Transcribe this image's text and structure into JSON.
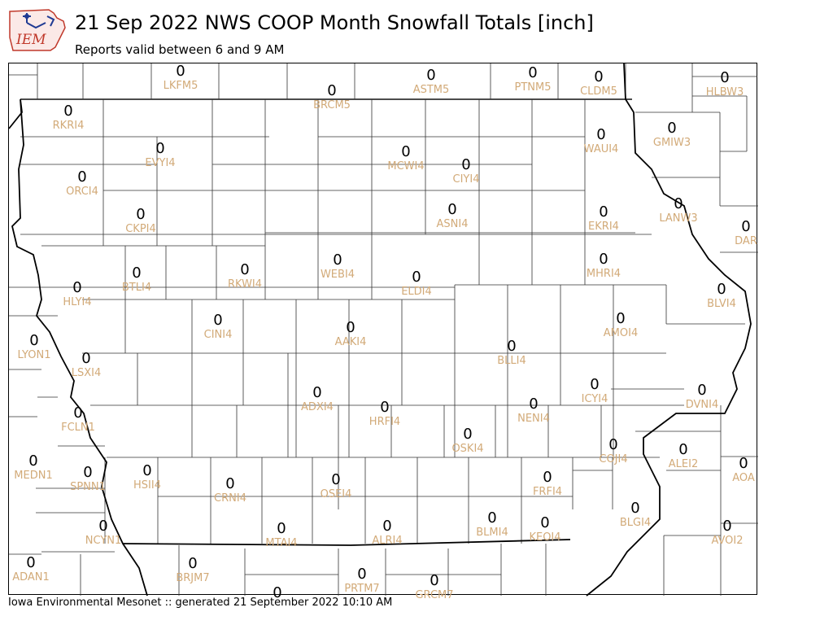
{
  "header": {
    "title": "21 Sep 2022 NWS COOP Month Snowfall Totals [inch]",
    "subtitle": "Reports valid between 6 and 9 AM",
    "logo_text": "IEM"
  },
  "footer": {
    "text": "Iowa Environmental Mesonet :: generated 21 September 2022 10:10 AM"
  },
  "colors": {
    "station_id": "#d2aa78",
    "value": "#000000",
    "logo_red": "#c0392b",
    "logo_blue": "#1f3a93"
  },
  "map": {
    "stations": [
      {
        "id": "LKFM5",
        "value": "0"
      },
      {
        "id": "ASTM5",
        "value": "0"
      },
      {
        "id": "PTNM5",
        "value": "0"
      },
      {
        "id": "CLDM5",
        "value": "0"
      },
      {
        "id": "HLBW3",
        "value": "0"
      },
      {
        "id": "BRCM5",
        "value": "0"
      },
      {
        "id": "RKRI4",
        "value": "0"
      },
      {
        "id": "WAUI4",
        "value": "0"
      },
      {
        "id": "GMIW3",
        "value": "0"
      },
      {
        "id": "EVYI4",
        "value": "0"
      },
      {
        "id": "MCWI4",
        "value": "0"
      },
      {
        "id": "CIYI4",
        "value": "0"
      },
      {
        "id": "ORCI4",
        "value": "0"
      },
      {
        "id": "CKPI4",
        "value": "0"
      },
      {
        "id": "ASNI4",
        "value": "0"
      },
      {
        "id": "EKRI4",
        "value": "0"
      },
      {
        "id": "LANW3",
        "value": "0"
      },
      {
        "id": "DAR",
        "value": "0"
      },
      {
        "id": "BTLI4",
        "value": "0"
      },
      {
        "id": "RKWI4",
        "value": "0"
      },
      {
        "id": "WEBI4",
        "value": "0"
      },
      {
        "id": "ELDI4",
        "value": "0"
      },
      {
        "id": "MHRI4",
        "value": "0"
      },
      {
        "id": "HLYI4",
        "value": "0"
      },
      {
        "id": "BLVI4",
        "value": "0"
      },
      {
        "id": "CINI4",
        "value": "0"
      },
      {
        "id": "AAKI4",
        "value": "0"
      },
      {
        "id": "AMOI4",
        "value": "0"
      },
      {
        "id": "LYON1",
        "value": "0"
      },
      {
        "id": "LSXI4",
        "value": "0"
      },
      {
        "id": "BLLI4",
        "value": "0"
      },
      {
        "id": "ICYI4",
        "value": "0"
      },
      {
        "id": "ADXI4",
        "value": "0"
      },
      {
        "id": "DVNI4",
        "value": "0"
      },
      {
        "id": "FCLN1",
        "value": "0"
      },
      {
        "id": "HRFI4",
        "value": "0"
      },
      {
        "id": "NENI4",
        "value": "0"
      },
      {
        "id": "OSKI4",
        "value": "0"
      },
      {
        "id": "COJI4",
        "value": "0"
      },
      {
        "id": "ALEI2",
        "value": "0"
      },
      {
        "id": "MEDN1",
        "value": "0"
      },
      {
        "id": "SPNN1",
        "value": "0"
      },
      {
        "id": "HSII4",
        "value": "0"
      },
      {
        "id": "CRNI4",
        "value": "0"
      },
      {
        "id": "OSEI4",
        "value": "0"
      },
      {
        "id": "FRFI4",
        "value": "0"
      },
      {
        "id": "AOA",
        "value": "0"
      },
      {
        "id": "NCYN1",
        "value": "0"
      },
      {
        "id": "MTAI4",
        "value": "0"
      },
      {
        "id": "ALRI4",
        "value": "0"
      },
      {
        "id": "BLMI4",
        "value": "0"
      },
      {
        "id": "KEOI4",
        "value": "0"
      },
      {
        "id": "BLGI4",
        "value": "0"
      },
      {
        "id": "AVOI2",
        "value": "0"
      },
      {
        "id": "ADAN1",
        "value": "0"
      },
      {
        "id": "BRJM7",
        "value": "0"
      },
      {
        "id": "PRTM7",
        "value": "0"
      },
      {
        "id": "GRCM7",
        "value": "0"
      },
      {
        "id": "",
        "value": "0"
      }
    ]
  }
}
